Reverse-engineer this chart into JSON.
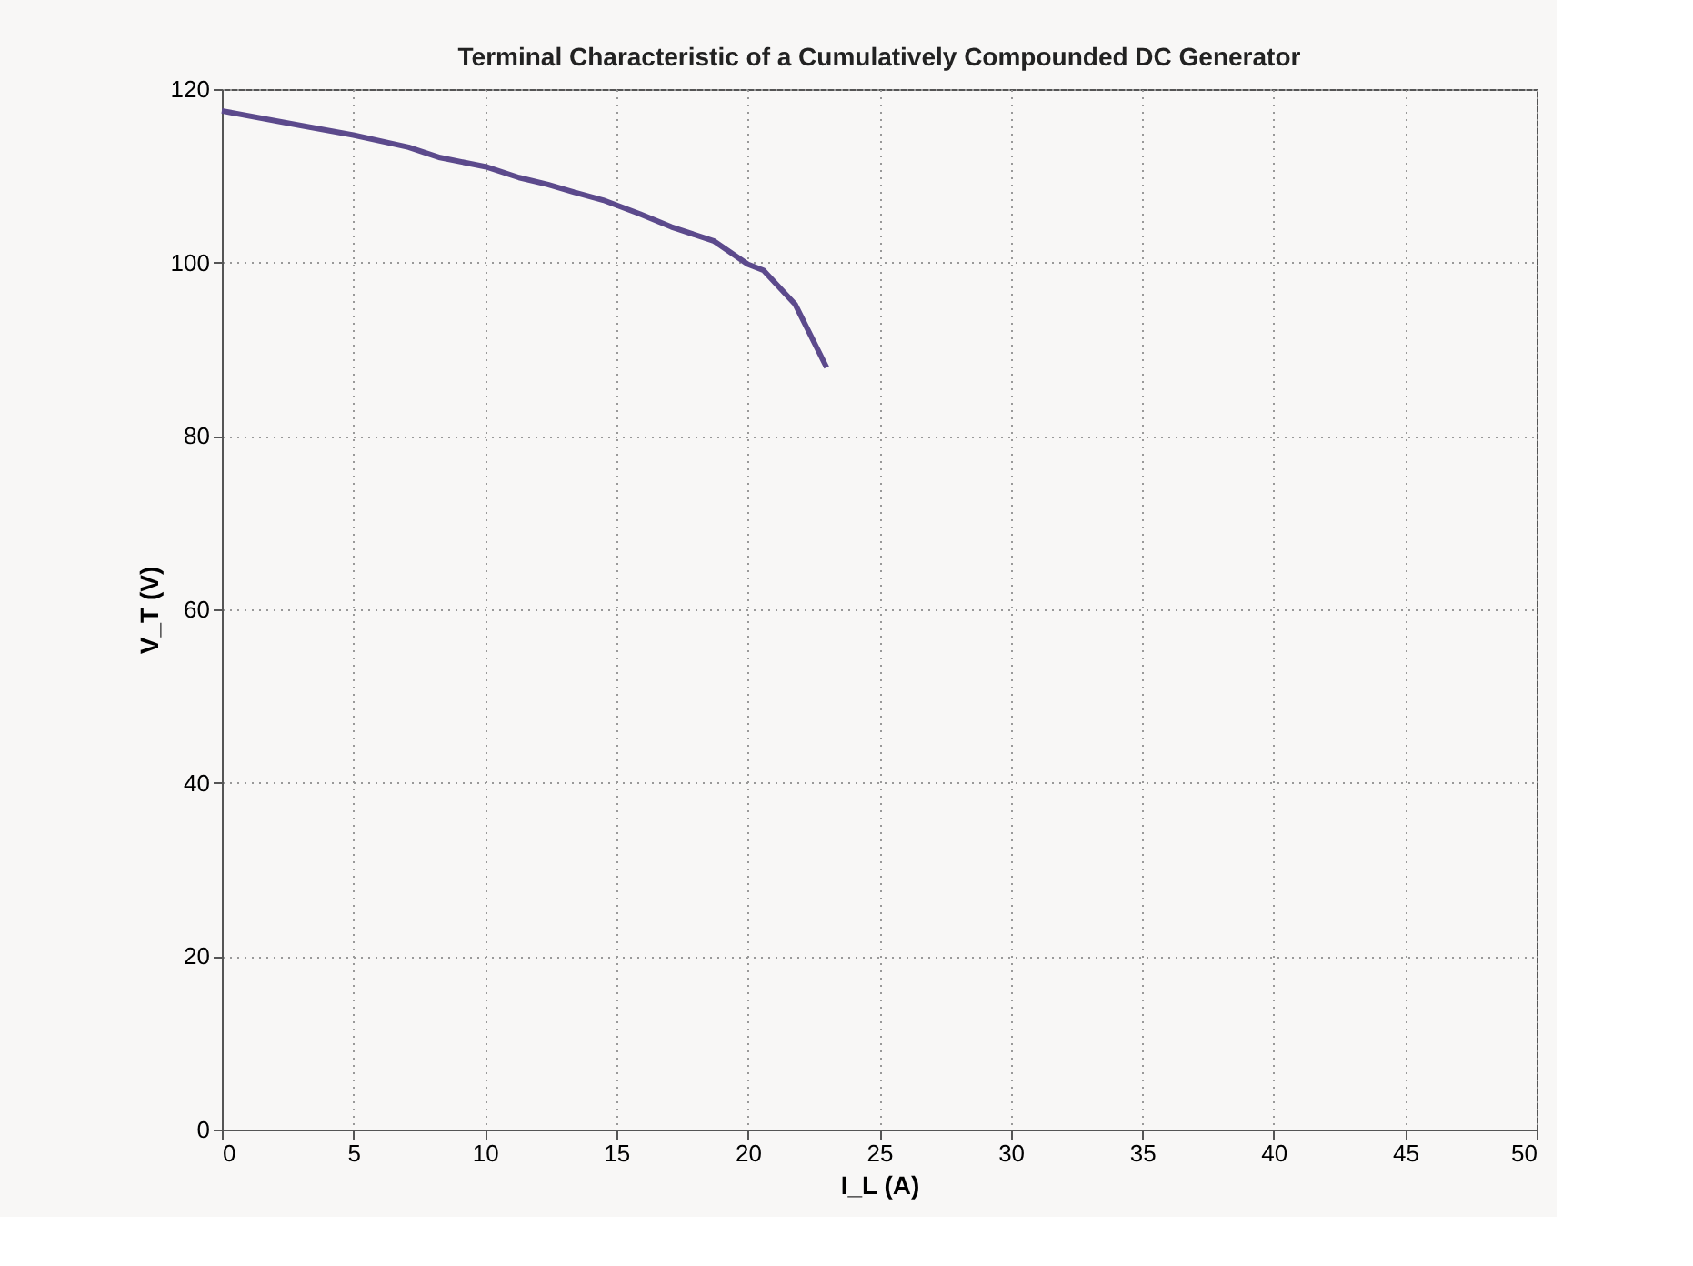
{
  "chart_data": {
    "type": "line",
    "title": "Terminal Characteristic of a Cumulatively Compounded DC Generator",
    "xlabel": "I_L (A)",
    "ylabel": "V_T (V)",
    "x": [
      0,
      3.0,
      5.0,
      6.2,
      7.1,
      8.3,
      10.1,
      11.3,
      12.4,
      13.4,
      14.5,
      15.9,
      17.1,
      18.7,
      20.0,
      20.6,
      21.8,
      23.0
    ],
    "series": [
      {
        "color": "#5c4a8c",
        "values": [
          117.5,
          115.8,
          114.7,
          113.9,
          113.3,
          112.1,
          111.0,
          109.8,
          109.0,
          108.1,
          107.2,
          105.6,
          104.1,
          102.5,
          99.8,
          99.1,
          95.2,
          87.9
        ]
      }
    ],
    "xlim": [
      0,
      50
    ],
    "xticks": [
      0,
      5,
      10,
      15,
      20,
      25,
      30,
      35,
      40,
      45,
      50
    ],
    "ylim": [
      0,
      120
    ],
    "yticks": [
      0,
      20,
      40,
      60,
      80,
      100,
      120
    ],
    "grid": true,
    "marker": "none",
    "line_style": "solid"
  }
}
